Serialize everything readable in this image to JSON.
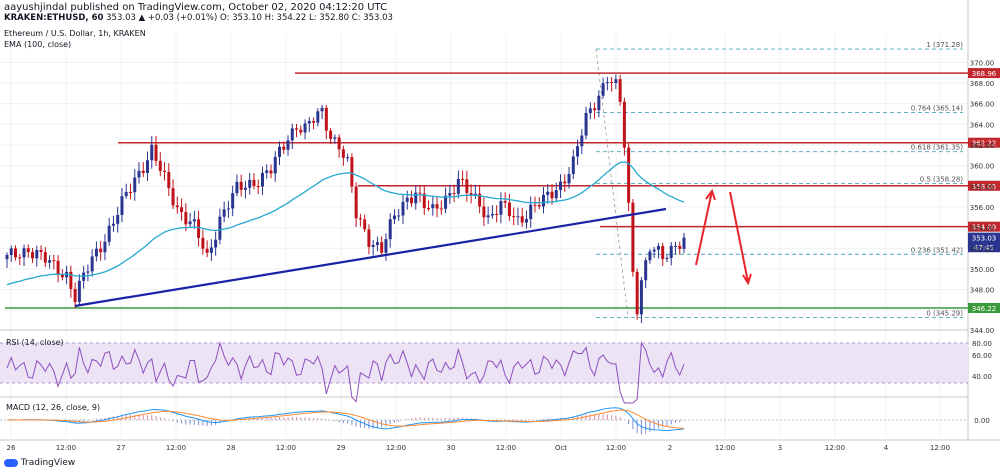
{
  "header": {
    "publisher_line": "aayushjindal published on TradingView.com, October 02, 2020 04:12:20 UTC",
    "symbol": "KRAKEN:ETHUSD, 60",
    "ohlc": "353.03 ▲ +0.03 (+0.01%) O: 353.10 H: 354.22 L: 352.80 C: 353.03",
    "title": "Ethereum / U.S. Dollar, 1h, KRAKEN",
    "ema_label": "EMA (100, close)"
  },
  "colors": {
    "up_candle": "#2a3590",
    "down_candle": "#c0121a",
    "ema": "#26a9d0",
    "trendline": "#1a22a6",
    "resistance": "#c1272d",
    "support": "#3a9a3a",
    "arrow": "#e8252b",
    "price_tag": "#c1272d",
    "fib": "#4aa8b8"
  },
  "price_axis": {
    "labels": [
      "370.00",
      "368.00",
      "366.00",
      "364.00",
      "362.00",
      "360.00",
      "358.00",
      "356.00",
      "354.00",
      "352.00",
      "350.00",
      "348.00",
      "344.00"
    ],
    "tags": [
      {
        "text": "368.96",
        "bg": "#c1272d",
        "price": 368.96
      },
      {
        "text": "362.22",
        "bg": "#c1272d",
        "price": 362.22
      },
      {
        "text": "358.05",
        "bg": "#c1272d",
        "price": 358.05
      },
      {
        "text": "354.09",
        "bg": "#c1272d",
        "price": 354.09
      },
      {
        "text": "353.03",
        "bg": "#2a3590",
        "price": 353.03
      },
      {
        "text": "47:45",
        "bg": "#2a3590",
        "price": 352.1
      },
      {
        "text": "346.22",
        "bg": "#3a9a3a",
        "price": 346.22
      }
    ]
  },
  "fib_levels": [
    {
      "label": "1 (371.28)",
      "price": 371.28
    },
    {
      "label": "0.764 (365.14)",
      "price": 365.14
    },
    {
      "label": "0.618 (361.35)",
      "price": 361.35
    },
    {
      "label": "0.5 (358.28)",
      "price": 358.28
    },
    {
      "label": "0.236 (351.42)",
      "price": 351.42
    },
    {
      "label": "0 (345.29)",
      "price": 345.29
    }
  ],
  "time_axis": [
    "26",
    "12:00",
    "27",
    "12:00",
    "28",
    "12:00",
    "29",
    "12:00",
    "30",
    "12:00",
    "Oct",
    "12:00",
    "2",
    "12:00",
    "3",
    "12:00",
    "4",
    "12:00"
  ],
  "rsi": {
    "label": "RSI (14, close)",
    "levels": [
      "80.00",
      "60.00",
      "40.00"
    ]
  },
  "macd": {
    "label": "MACD (12, 26, close, 9)",
    "levels": [
      "0.00"
    ]
  },
  "footer": {
    "logo": "TradingView"
  }
}
